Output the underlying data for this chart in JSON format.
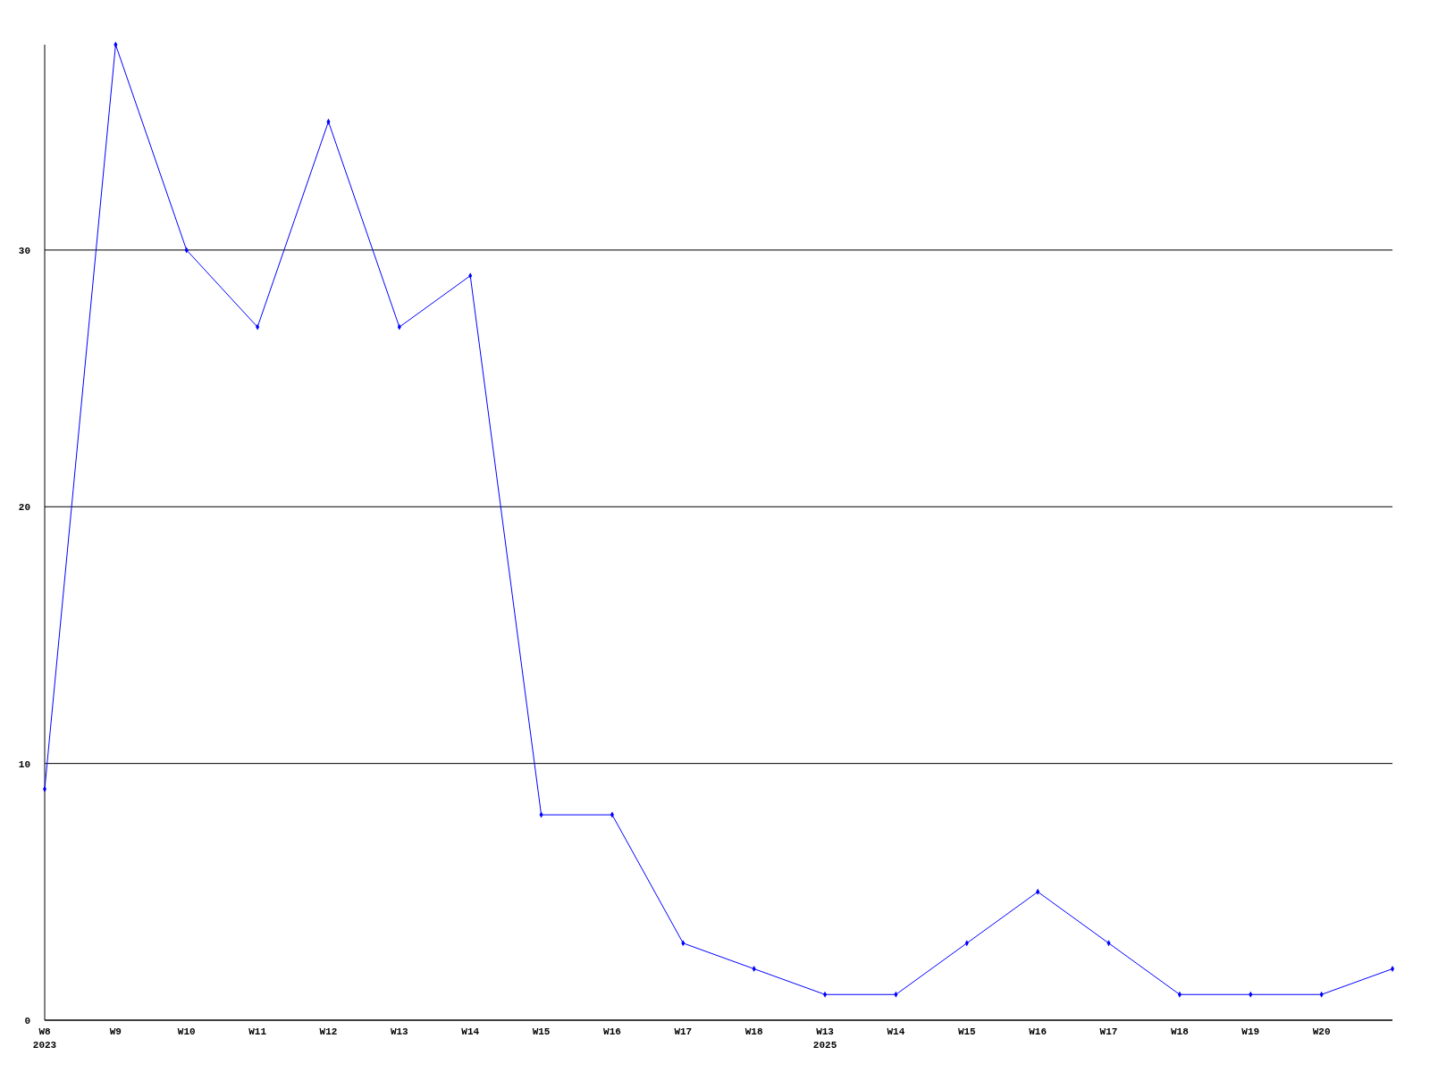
{
  "chart_data": {
    "type": "line",
    "categories": [
      "W8\n2023",
      "W9",
      "W10",
      "W11",
      "W12",
      "W13",
      "W14",
      "W15",
      "W16",
      "W17",
      "W18",
      "W13\n2025",
      "W14",
      "W15",
      "W16",
      "W17",
      "W18",
      "W19",
      "W20",
      null
    ],
    "series": [
      {
        "color": "#0000ff",
        "values": [
          9,
          38,
          30,
          27,
          35,
          27,
          29,
          8,
          8,
          3,
          2,
          1,
          1,
          3,
          5,
          3,
          1,
          1,
          1,
          2
        ]
      }
    ],
    "ylim": [
      0,
      38
    ],
    "yticks": [
      0,
      10,
      20,
      30
    ],
    "grid": "y",
    "marker": "diamond"
  }
}
